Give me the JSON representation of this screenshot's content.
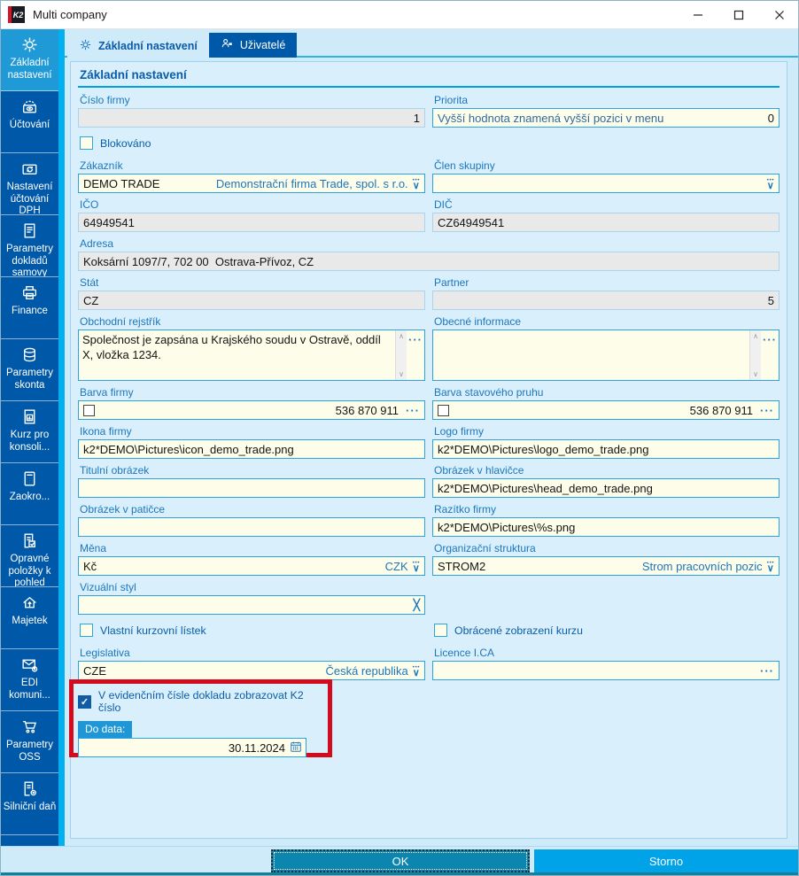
{
  "window": {
    "title": "Multi company"
  },
  "tabs": [
    {
      "label": "Základní nastavení",
      "icon": "gear",
      "active": true
    },
    {
      "label": "Uživatelé",
      "icon": "person",
      "active": false
    }
  ],
  "sidebar": {
    "items": [
      {
        "id": "zakladni-nastaveni",
        "label": "Základní nastavení",
        "icon": "gear",
        "active": true
      },
      {
        "id": "uctovani",
        "label": "Účtování",
        "icon": "cash",
        "active": false
      },
      {
        "id": "nastaveni-uctovani-dph",
        "label": "Nastavení účtování DPH",
        "icon": "vat",
        "active": false
      },
      {
        "id": "parametry-dokladu",
        "label": "Parametry dokladů samovy",
        "icon": "doc",
        "active": false
      },
      {
        "id": "finance",
        "label": "Finance",
        "icon": "printer",
        "active": false
      },
      {
        "id": "parametry-skonta",
        "label": "Parametry skonta",
        "icon": "coins",
        "active": false
      },
      {
        "id": "kurz-pro-konsolidaci",
        "label": "Kurz pro konsoli...",
        "icon": "chartdoc",
        "active": false
      },
      {
        "id": "zaokrouhleni",
        "label": "Zaokro...",
        "icon": "calc",
        "active": false
      },
      {
        "id": "opravne-polozky",
        "label": "Opravné položky k pohled",
        "icon": "doccheck",
        "active": false
      },
      {
        "id": "majetek",
        "label": "Majetek",
        "icon": "house",
        "active": false
      },
      {
        "id": "edi-komunikace",
        "label": "EDI komuni...",
        "icon": "envgear",
        "active": false
      },
      {
        "id": "parametry-oss",
        "label": "Parametry OSS",
        "icon": "cart",
        "active": false
      },
      {
        "id": "silnicni-dan",
        "label": "Silniční daň",
        "icon": "docgear",
        "active": false
      }
    ]
  },
  "form": {
    "heading": "Základní nastavení",
    "fields": {
      "cislo_firmy": {
        "label": "Číslo firmy",
        "value": "1"
      },
      "priorita": {
        "label": "Priorita",
        "hint": "Vyšší hodnota znamená vyšší pozici v menu",
        "value": "0"
      },
      "blokovano": {
        "label": "Blokováno"
      },
      "zakaznik": {
        "label": "Zákazník",
        "value": "DEMO TRADE",
        "detail": "Demonstrační firma Trade, spol. s r.o."
      },
      "clen_skupiny": {
        "label": "Člen skupiny",
        "value": ""
      },
      "ico": {
        "label": "IČO",
        "value": "64949541"
      },
      "dic": {
        "label": "DIČ",
        "value": "CZ64949541"
      },
      "adresa": {
        "label": "Adresa",
        "value": "Koksární 1097/7, 702 00  Ostrava-Přívoz, CZ"
      },
      "stat": {
        "label": "Stát",
        "value": "CZ"
      },
      "partner": {
        "label": "Partner",
        "value": "5"
      },
      "obchodni_rejstrik": {
        "label": "Obchodní rejstřík",
        "value": "Společnost je zapsána u Krajského soudu v Ostravě, oddíl X, vložka 1234."
      },
      "obecne_informace": {
        "label": "Obecné informace",
        "value": ""
      },
      "barva_firmy": {
        "label": "Barva firmy",
        "value": "536 870 911"
      },
      "barva_pruhu": {
        "label": "Barva stavového pruhu",
        "value": "536 870 911"
      },
      "ikona_firmy": {
        "label": "Ikona firmy",
        "value": "k2*DEMO\\Pictures\\icon_demo_trade.png"
      },
      "logo_firmy": {
        "label": "Logo firmy",
        "value": "k2*DEMO\\Pictures\\logo_demo_trade.png"
      },
      "titulni_obrazek": {
        "label": "Titulní obrázek",
        "value": ""
      },
      "obrazek_hlavicka": {
        "label": "Obrázek v hlavičce",
        "value": "k2*DEMO\\Pictures\\head_demo_trade.png"
      },
      "obrazek_paticka": {
        "label": "Obrázek v patičce",
        "value": ""
      },
      "razitko": {
        "label": "Razítko firmy",
        "value": "k2*DEMO\\Pictures\\%s.png"
      },
      "mena": {
        "label": "Měna",
        "value": "Kč",
        "detail": "CZK"
      },
      "org_struktura": {
        "label": "Organizační struktura",
        "value": "STROM2",
        "detail": "Strom pracovních pozic"
      },
      "vizualni_styl": {
        "label": "Vizuální styl",
        "value": ""
      },
      "vlastni_kurzovni": {
        "label": "Vlastní kurzovní lístek"
      },
      "obracene_zobrazeni": {
        "label": "Obrácené zobrazení kurzu"
      },
      "legislativa": {
        "label": "Legislativa",
        "value": "CZE",
        "detail": "Česká republika"
      },
      "licence": {
        "label": "Licence I.CA",
        "value": ""
      },
      "evidencni": {
        "label": "V evidenčním čísle dokladu zobrazovat K2 číslo",
        "checked": true
      },
      "do_data": {
        "label": "Do data:",
        "value": "30.11.2024"
      }
    }
  },
  "buttons": {
    "ok": "OK",
    "storno": "Storno"
  },
  "colors": {
    "sidebar": "#0059a8",
    "sidebar_active": "#1f9ad6",
    "accent_stripe": "#00b0f0",
    "field_editable_bg": "#fdfde9",
    "field_readonly_bg": "#e9e9e9",
    "field_border": "#2ba5e0",
    "label_blue": "#1b76be",
    "annotation_red": "#d40b1d",
    "ok_button": "#0c86ae",
    "storno_button": "#00a2e8"
  }
}
